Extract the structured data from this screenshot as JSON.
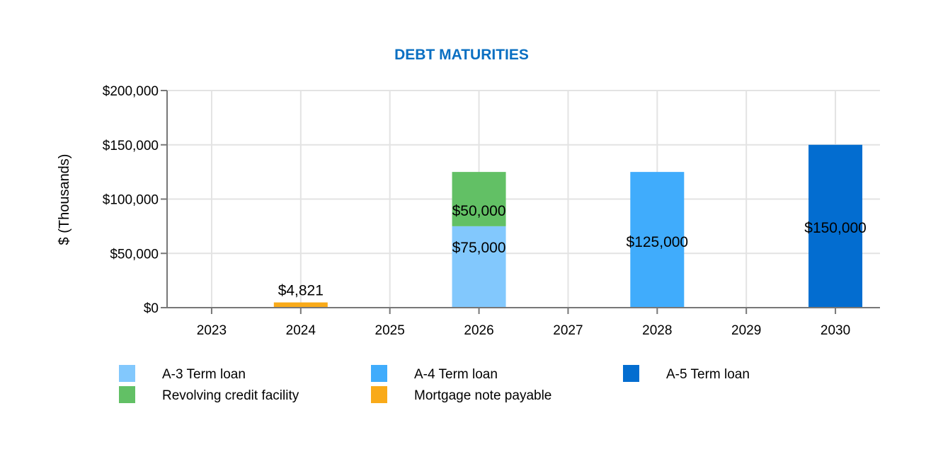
{
  "chart_data": {
    "type": "bar",
    "stacked": true,
    "title": "DEBT MATURITIES",
    "title_color": "#0a6fc2",
    "xlabel": "",
    "ylabel": "$ (Thousands)",
    "ylim": [
      0,
      200000
    ],
    "yticks": [
      0,
      50000,
      100000,
      150000,
      200000
    ],
    "ytick_labels": [
      "$0",
      "$50,000",
      "$100,000",
      "$150,000",
      "$200,000"
    ],
    "grid": true,
    "legend_placement": "bottom",
    "categories": [
      "2023",
      "2024",
      "2025",
      "2026",
      "2027",
      "2028",
      "2029",
      "2030"
    ],
    "series": [
      {
        "name": "A-3 Term loan",
        "color": "#82c8fd",
        "values": [
          0,
          0,
          0,
          75000,
          0,
          0,
          0,
          0
        ],
        "labels": [
          "",
          "",
          "",
          "$75,000",
          "",
          "",
          "",
          ""
        ]
      },
      {
        "name": "Revolving credit facility",
        "color": "#62c065",
        "values": [
          0,
          0,
          0,
          50000,
          0,
          0,
          0,
          0
        ],
        "labels": [
          "",
          "",
          "",
          "$50,000",
          "",
          "",
          "",
          ""
        ]
      },
      {
        "name": "A-4 Term loan",
        "color": "#40acfc",
        "values": [
          0,
          0,
          0,
          0,
          0,
          125000,
          0,
          0
        ],
        "labels": [
          "",
          "",
          "",
          "",
          "",
          "$125,000",
          "",
          ""
        ]
      },
      {
        "name": "Mortgage note payable",
        "color": "#f9aa19",
        "values": [
          0,
          4821,
          0,
          0,
          0,
          0,
          0,
          0
        ],
        "labels": [
          "",
          "$4,821",
          "",
          "",
          "",
          "",
          "",
          ""
        ]
      },
      {
        "name": "A-5 Term loan",
        "color": "#036dd0",
        "values": [
          0,
          0,
          0,
          0,
          0,
          0,
          0,
          150000
        ],
        "labels": [
          "",
          "",
          "",
          "",
          "",
          "",
          "",
          "$150,000"
        ]
      }
    ],
    "legend_order": [
      "A-3 Term loan",
      "A-4 Term loan",
      "A-5 Term loan",
      "Revolving credit facility",
      "Mortgage note payable"
    ]
  }
}
